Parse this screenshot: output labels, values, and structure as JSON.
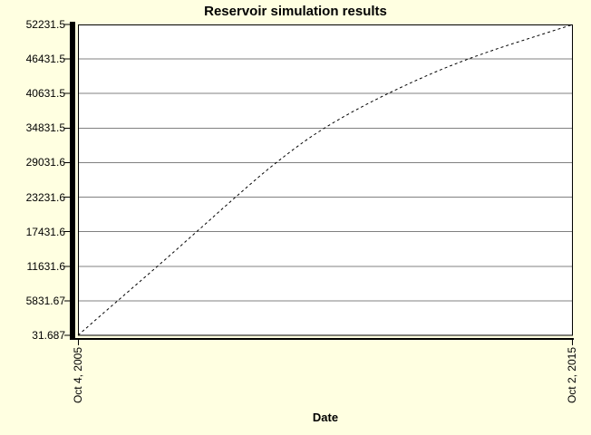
{
  "chart_data": {
    "type": "line",
    "title": "Reservoir simulation results",
    "xlabel": "Date",
    "x_tick_labels": [
      "Oct 4, 2005",
      "Oct 2, 2015"
    ],
    "y_tick_labels": [
      "52231.5",
      "46431.5",
      "40631.5",
      "34831.5",
      "29031.6",
      "23231.6",
      "17431.6",
      "11631.6",
      "5831.67",
      "31.687"
    ],
    "ylim": [
      31.687,
      52231.5
    ],
    "x_years_range": [
      0,
      10
    ],
    "grid": "horizontal-only",
    "legend": "none",
    "line_style": "dashed",
    "series": [
      {
        "points_x_years": [
          0,
          0.8,
          1.61,
          2.4,
          3.18,
          3.99,
          4.94,
          6.23,
          7.81,
          10
        ],
        "points_y": [
          31.687,
          5831.67,
          11631.6,
          17431.6,
          23231.6,
          29031.6,
          34831.5,
          40631.5,
          46431.5,
          52231.5
        ]
      }
    ],
    "colors": {
      "page_background": "#FFFFE1",
      "plot_background": "#FFFFFF",
      "grid": "#808080",
      "axis": "#000000",
      "line": "#000000",
      "text": "#000000"
    }
  }
}
